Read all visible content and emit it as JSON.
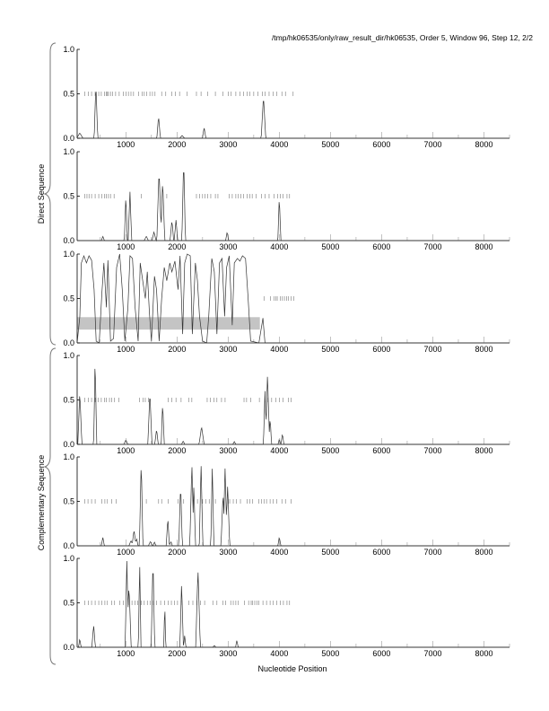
{
  "header": {
    "title": "/tmp/hk06535/only/raw_result_dir/hk06535, Order 5, Window 96, Step 12, 2/2"
  },
  "chart_data": {
    "type": "line",
    "title": "/tmp/hk06535/only/raw_result_dir/hk06535, Order 5, Window 96, Step 12, 2/2",
    "xlabel": "Nucleotide Position",
    "xlim": [
      48,
      8500
    ],
    "ylim": [
      0,
      1
    ],
    "x_ticks": [
      "1000",
      "2000",
      "3000",
      "4000",
      "5000",
      "6000",
      "7000",
      "8000"
    ],
    "x_tick_values": [
      1000,
      2000,
      3000,
      4000,
      5000,
      6000,
      7000,
      8000
    ],
    "y_ticks": [
      "0.0",
      "0.5",
      "1.0"
    ],
    "groups": [
      {
        "label": "Direct Sequence",
        "panels": [
          0,
          1,
          2
        ]
      },
      {
        "label": "Complementary Sequence",
        "panels": [
          3,
          4,
          5
        ]
      }
    ],
    "panels": [
      {
        "name": "direct-frame-1",
        "peaks": [
          [
            100,
            0.06,
            60
          ],
          [
            415,
            0.61,
            35
          ],
          [
            1640,
            0.25,
            35
          ],
          [
            2100,
            0.03,
            50
          ],
          [
            2530,
            0.12,
            35
          ],
          [
            3690,
            0.48,
            45
          ]
        ],
        "orf_marks": [
          200,
          270,
          330,
          400,
          470,
          520,
          580,
          620,
          640,
          660,
          700,
          740,
          800,
          870,
          950,
          1000,
          1050,
          1100,
          1150,
          1250,
          1320,
          1360,
          1410,
          1470,
          1520,
          1570,
          1700,
          1780,
          1900,
          1970,
          2050,
          2200,
          2380,
          2470,
          2600,
          2750,
          2900,
          3000,
          3060,
          3150,
          3230,
          3300,
          3370,
          3420,
          3500,
          3580,
          3670,
          3720,
          3800,
          3880,
          3950,
          4050,
          4120,
          4270
        ]
      },
      {
        "name": "direct-frame-2",
        "peaks": [
          [
            550,
            0.05,
            30
          ],
          [
            1000,
            0.52,
            30
          ],
          [
            1080,
            0.55,
            35
          ],
          [
            1400,
            0.05,
            40
          ],
          [
            1550,
            0.1,
            40
          ],
          [
            1650,
            0.8,
            45
          ],
          [
            1720,
            0.68,
            40
          ],
          [
            1900,
            0.23,
            35
          ],
          [
            1980,
            0.23,
            35
          ],
          [
            2130,
            0.92,
            35
          ],
          [
            2980,
            0.1,
            30
          ],
          [
            4000,
            0.5,
            30
          ]
        ],
        "orf_marks": [
          200,
          240,
          280,
          330,
          400,
          470,
          530,
          580,
          620,
          660,
          700,
          770,
          1300,
          1800,
          2380,
          2440,
          2500,
          2550,
          2600,
          2660,
          2750,
          2800,
          3020,
          3080,
          3150,
          3200,
          3250,
          3300,
          3370,
          3420,
          3470,
          3550,
          3650,
          3720,
          3800,
          3900,
          3970,
          4020,
          4070,
          4150,
          4200
        ]
      },
      {
        "name": "direct-frame-3",
        "points": [
          [
            48,
            0
          ],
          [
            100,
            0.3
          ],
          [
            130,
            0.9
          ],
          [
            180,
            0.98
          ],
          [
            230,
            0.9
          ],
          [
            280,
            0.98
          ],
          [
            330,
            0.93
          ],
          [
            380,
            0.6
          ],
          [
            420,
            0.02
          ],
          [
            480,
            0
          ],
          [
            530,
            0.55
          ],
          [
            570,
            0.9
          ],
          [
            620,
            0.4
          ],
          [
            650,
            0.93
          ],
          [
            700,
            0.02
          ],
          [
            760,
            0.05
          ],
          [
            820,
            0.85
          ],
          [
            880,
            1.0
          ],
          [
            930,
            0.6
          ],
          [
            980,
            0.02
          ],
          [
            1040,
            0.4
          ],
          [
            1080,
            0.98
          ],
          [
            1130,
            0.95
          ],
          [
            1180,
            0.4
          ],
          [
            1240,
            0.02
          ],
          [
            1280,
            0.9
          ],
          [
            1330,
            0.7
          ],
          [
            1380,
            0.5
          ],
          [
            1420,
            0.8
          ],
          [
            1460,
            0.35
          ],
          [
            1500,
            0.02
          ],
          [
            1560,
            0.75
          ],
          [
            1600,
            0.6
          ],
          [
            1650,
            0.02
          ],
          [
            1700,
            0.5
          ],
          [
            1750,
            0.85
          ],
          [
            1800,
            0.7
          ],
          [
            1860,
            0.9
          ],
          [
            1900,
            0.8
          ],
          [
            1960,
            0.92
          ],
          [
            2020,
            0.6
          ],
          [
            2060,
            0.98
          ],
          [
            2110,
            0.1
          ],
          [
            2150,
            0.9
          ],
          [
            2200,
            1.0
          ],
          [
            2260,
            0.98
          ],
          [
            2300,
            0.1
          ],
          [
            2360,
            0.9
          ],
          [
            2400,
            0.7
          ],
          [
            2440,
            0.3
          ],
          [
            2500,
            0.02
          ],
          [
            2580,
            0
          ],
          [
            2620,
            0.3
          ],
          [
            2680,
            0.95
          ],
          [
            2730,
            0.8
          ],
          [
            2780,
            0.1
          ],
          [
            2830,
            0.9
          ],
          [
            2880,
            0.95
          ],
          [
            2930,
            0.3
          ],
          [
            2970,
            0.85
          ],
          [
            3020,
            0.98
          ],
          [
            3080,
            0.2
          ],
          [
            3120,
            0.9
          ],
          [
            3180,
            0.95
          ],
          [
            3230,
            0.92
          ],
          [
            3280,
            0.98
          ],
          [
            3340,
            0.95
          ],
          [
            3390,
            0.5
          ],
          [
            3440,
            0.02
          ],
          [
            3600,
            0
          ],
          [
            3680,
            0.28
          ],
          [
            3720,
            0
          ],
          [
            8500,
            0
          ]
        ],
        "highlight_band": {
          "x": [
            48,
            3620
          ],
          "y": [
            0.15,
            0.29
          ]
        },
        "orf_marks": [
          3700,
          3830,
          3900,
          3930,
          3960,
          4020,
          4060,
          4100,
          4140,
          4180,
          4230,
          4280
        ]
      },
      {
        "name": "complementary-frame-1",
        "peaks": [
          [
            100,
            0.6,
            40
          ],
          [
            400,
            0.98,
            30
          ],
          [
            1000,
            0.05,
            40
          ],
          [
            1470,
            0.6,
            40
          ],
          [
            1600,
            0.17,
            35
          ],
          [
            1720,
            0.47,
            30
          ],
          [
            2120,
            0.04,
            30
          ],
          [
            2480,
            0.2,
            50
          ],
          [
            3120,
            0.03,
            30
          ],
          [
            3720,
            0.6,
            30
          ],
          [
            3770,
            0.8,
            40
          ],
          [
            3820,
            0.3,
            30
          ],
          [
            4000,
            0.06,
            25
          ],
          [
            4060,
            0.12,
            30
          ]
        ],
        "orf_marks": [
          200,
          270,
          330,
          400,
          460,
          520,
          580,
          620,
          680,
          720,
          780,
          860,
          1270,
          1340,
          1380,
          1440,
          1830,
          1900,
          1980,
          2080,
          2230,
          2290,
          2590,
          2650,
          2720,
          2780,
          2870,
          2940,
          3310,
          3360,
          3440,
          3610,
          3780,
          3850,
          3930,
          4000,
          4070,
          4180,
          4230
        ]
      },
      {
        "name": "complementary-frame-2",
        "peaks": [
          [
            550,
            0.1,
            30
          ],
          [
            1100,
            0.06,
            40
          ],
          [
            1160,
            0.18,
            40
          ],
          [
            1210,
            0.08,
            30
          ],
          [
            1300,
            0.96,
            35
          ],
          [
            1480,
            0.05,
            40
          ],
          [
            1560,
            0.04,
            30
          ],
          [
            1820,
            0.32,
            30
          ],
          [
            1880,
            0.05,
            30
          ],
          [
            2070,
            0.7,
            35
          ],
          [
            2290,
            0.93,
            40
          ],
          [
            2330,
            0.7,
            30
          ],
          [
            2470,
            0.95,
            35
          ],
          [
            2690,
            0.93,
            30
          ],
          [
            2900,
            0.6,
            40
          ],
          [
            2940,
            0.87,
            40
          ],
          [
            2990,
            0.7,
            40
          ],
          [
            4000,
            0.1,
            30
          ]
        ],
        "orf_marks": [
          200,
          260,
          330,
          400,
          530,
          590,
          640,
          720,
          810,
          1400,
          1640,
          1700,
          1830,
          2020,
          2130,
          2400,
          2500,
          2560,
          2630,
          2750,
          3000,
          3030,
          3100,
          3160,
          3240,
          3370,
          3420,
          3480,
          3600,
          3650,
          3700,
          3750,
          3820,
          3880,
          3950,
          4050,
          4120,
          4230
        ]
      },
      {
        "name": "complementary-frame-3",
        "peaks": [
          [
            100,
            0.1,
            25
          ],
          [
            370,
            0.25,
            35
          ],
          [
            1020,
            0.97,
            35
          ],
          [
            1060,
            0.7,
            45
          ],
          [
            1270,
            0.98,
            25
          ],
          [
            1530,
            1.0,
            35
          ],
          [
            1760,
            0.5,
            20
          ],
          [
            2090,
            0.73,
            35
          ],
          [
            2150,
            0.14,
            25
          ],
          [
            2410,
            0.88,
            45
          ],
          [
            2730,
            0.02,
            30
          ],
          [
            3170,
            0.08,
            25
          ]
        ],
        "orf_marks": [
          200,
          270,
          330,
          400,
          470,
          530,
          590,
          640,
          720,
          780,
          880,
          950,
          1050,
          1120,
          1180,
          1230,
          1300,
          1360,
          1420,
          1480,
          1540,
          1600,
          1680,
          1760,
          1830,
          1890,
          1950,
          2010,
          2080,
          2230,
          2310,
          2390,
          2460,
          2540,
          2700,
          2780,
          2900,
          2950,
          3050,
          3100,
          3150,
          3200,
          3320,
          3400,
          3450,
          3480,
          3520,
          3560,
          3600,
          3680,
          3750,
          3820,
          3880,
          3950,
          4020,
          4080,
          4150,
          4200
        ]
      }
    ]
  }
}
